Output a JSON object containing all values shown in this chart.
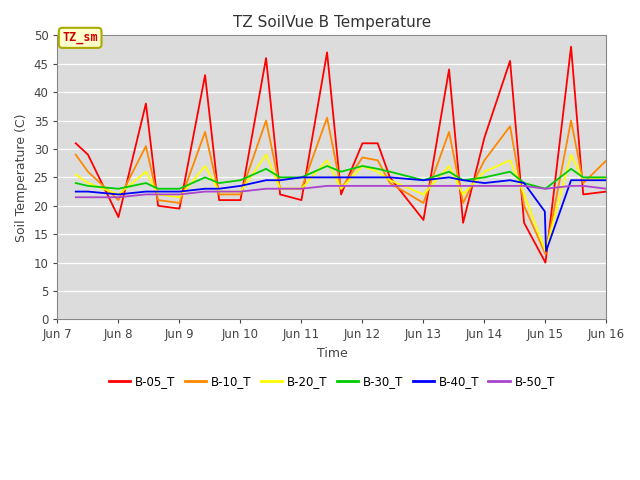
{
  "title": "TZ SoilVue B Temperature",
  "xlabel": "Time",
  "ylabel": "Soil Temperature (C)",
  "ylim": [
    0,
    50
  ],
  "yticks": [
    0,
    5,
    10,
    15,
    20,
    25,
    30,
    35,
    40,
    45,
    50
  ],
  "fig_bg_color": "#ffffff",
  "plot_bg": "#dcdcdc",
  "annotation_text": "TZ_sm",
  "annotation_color": "#cc0000",
  "annotation_bg": "#ffffcc",
  "annotation_border": "#aaaa00",
  "series": {
    "B-05_T": {
      "color": "#ff0000",
      "x": [
        7.3,
        7.5,
        8.0,
        8.45,
        8.65,
        9.0,
        9.42,
        9.65,
        10.0,
        10.42,
        10.65,
        11.0,
        11.42,
        11.65,
        12.0,
        12.25,
        12.45,
        13.0,
        13.42,
        13.65,
        14.0,
        14.42,
        14.65,
        15.0,
        15.42,
        15.62,
        16.0
      ],
      "y": [
        31,
        29,
        18,
        38,
        20,
        19.5,
        43,
        21,
        21,
        46,
        22,
        21,
        47,
        22,
        31,
        31,
        25,
        17.5,
        44,
        17,
        32,
        45.5,
        17,
        10,
        48,
        22,
        22.5
      ]
    },
    "B-10_T": {
      "color": "#ff8800",
      "x": [
        7.3,
        7.5,
        8.0,
        8.45,
        8.65,
        9.0,
        9.42,
        9.65,
        10.0,
        10.42,
        10.65,
        11.0,
        11.42,
        11.65,
        12.0,
        12.25,
        12.45,
        13.0,
        13.42,
        13.65,
        14.0,
        14.42,
        14.65,
        15.0,
        15.42,
        15.62,
        16.0
      ],
      "y": [
        29,
        26,
        21,
        30.5,
        21,
        20.5,
        33,
        22,
        22,
        35,
        23,
        23,
        35.5,
        23,
        28.5,
        28,
        24,
        20.5,
        33,
        20.5,
        28,
        34,
        20,
        11.5,
        35,
        24,
        28
      ]
    },
    "B-20_T": {
      "color": "#ffff00",
      "x": [
        7.3,
        7.5,
        8.0,
        8.45,
        8.65,
        9.0,
        9.42,
        9.65,
        10.0,
        10.42,
        10.65,
        11.0,
        11.42,
        11.65,
        12.0,
        12.25,
        12.45,
        13.0,
        13.42,
        13.65,
        14.0,
        14.42,
        14.65,
        15.0,
        15.42,
        15.62,
        16.0
      ],
      "y": [
        25.5,
        24,
        22,
        26,
        22,
        21.5,
        27,
        22.5,
        22.5,
        29,
        23,
        23,
        28,
        23,
        27,
        26,
        24.5,
        22,
        27,
        22,
        26,
        28,
        22,
        12,
        29,
        24.5,
        25
      ]
    },
    "B-30_T": {
      "color": "#00cc00",
      "x": [
        7.3,
        7.5,
        8.0,
        8.45,
        8.65,
        9.0,
        9.42,
        9.65,
        10.0,
        10.42,
        10.65,
        11.0,
        11.42,
        11.65,
        12.0,
        12.25,
        12.45,
        13.0,
        13.42,
        13.65,
        14.0,
        14.42,
        14.65,
        15.0,
        15.42,
        15.62,
        16.0
      ],
      "y": [
        24,
        23.5,
        23,
        24,
        23,
        23,
        25,
        24,
        24.5,
        26.5,
        25,
        25,
        27,
        26,
        27,
        26.5,
        26,
        24.5,
        26,
        24.5,
        25,
        26,
        24,
        23,
        26.5,
        25,
        25
      ]
    },
    "B-40_T": {
      "color": "#0000ff",
      "x": [
        7.3,
        7.5,
        8.0,
        8.45,
        8.65,
        9.0,
        9.42,
        9.65,
        10.0,
        10.42,
        10.65,
        11.0,
        11.42,
        11.65,
        12.0,
        12.25,
        12.45,
        13.0,
        13.42,
        13.65,
        14.0,
        14.42,
        14.65,
        14.99,
        15.01,
        15.42,
        15.62,
        16.0
      ],
      "y": [
        22.5,
        22.5,
        22,
        22.5,
        22.5,
        22.5,
        23,
        23,
        23.5,
        24.5,
        24.5,
        25,
        25,
        25,
        25,
        25,
        25,
        24.5,
        25,
        24.5,
        24,
        24.5,
        24,
        19,
        12,
        24.5,
        24.5,
        24.5
      ]
    },
    "B-50_T": {
      "color": "#aa44cc",
      "x": [
        7.3,
        7.5,
        8.0,
        8.45,
        8.65,
        9.0,
        9.42,
        9.65,
        10.0,
        10.42,
        10.65,
        11.0,
        11.42,
        11.65,
        12.0,
        12.25,
        12.45,
        13.0,
        13.42,
        13.65,
        14.0,
        14.42,
        14.65,
        15.0,
        15.42,
        15.62,
        16.0
      ],
      "y": [
        21.5,
        21.5,
        21.5,
        22,
        22,
        22,
        22.5,
        22.5,
        22.5,
        23,
        23,
        23,
        23.5,
        23.5,
        23.5,
        23.5,
        23.5,
        23.5,
        23.5,
        23.5,
        23.5,
        23.5,
        23.5,
        23,
        23.5,
        23.5,
        23
      ]
    }
  },
  "xtick_positions": [
    7,
    8,
    9,
    10,
    11,
    12,
    13,
    14,
    15,
    16
  ],
  "xtick_labels": [
    "Jun 7",
    "Jun 8",
    "Jun 9",
    "Jun 10",
    "Jun 11",
    "Jun 12",
    "Jun 13",
    "Jun 14",
    "Jun 15",
    "Jun 16"
  ],
  "legend_labels": [
    "B-05_T",
    "B-10_T",
    "B-20_T",
    "B-30_T",
    "B-40_T",
    "B-50_T"
  ],
  "legend_colors": [
    "#ff0000",
    "#ff8800",
    "#ffff00",
    "#00cc00",
    "#0000ff",
    "#aa44cc"
  ]
}
